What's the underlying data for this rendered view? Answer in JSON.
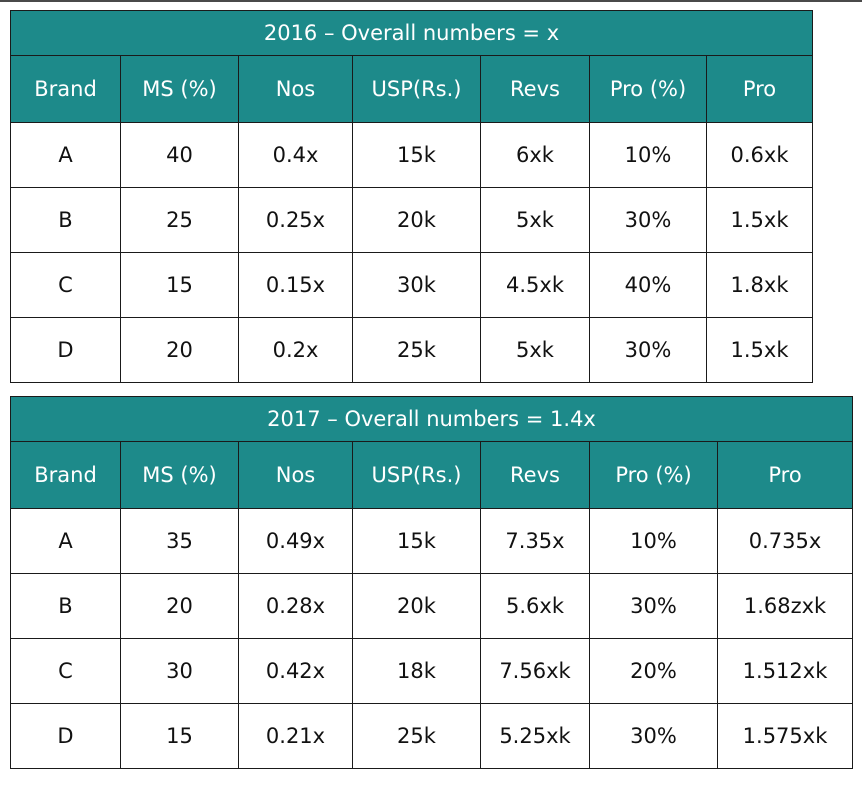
{
  "tables": [
    {
      "title": "2016 – Overall numbers = x",
      "headers": [
        "Brand",
        "MS (%)",
        "Nos",
        "USP(Rs.)",
        "Revs",
        "Pro (%)",
        "Pro"
      ],
      "rows": [
        [
          "A",
          "40",
          "0.4x",
          "15k",
          "6xk",
          "10%",
          "0.6xk"
        ],
        [
          "B",
          "25",
          "0.25x",
          "20k",
          "5xk",
          "30%",
          "1.5xk"
        ],
        [
          "C",
          "15",
          "0.15x",
          "30k",
          "4.5xk",
          "40%",
          "1.8xk"
        ],
        [
          "D",
          "20",
          "0.2x",
          "25k",
          "5xk",
          "30%",
          "1.5xk"
        ]
      ]
    },
    {
      "title": "2017 – Overall numbers = 1.4x",
      "headers": [
        "Brand",
        "MS (%)",
        "Nos",
        "USP(Rs.)",
        "Revs",
        "Pro (%)",
        "Pro"
      ],
      "rows": [
        [
          "A",
          "35",
          "0.49x",
          "15k",
          "7.35x",
          "10%",
          "0.735x"
        ],
        [
          "B",
          "20",
          "0.28x",
          "20k",
          "5.6xk",
          "30%",
          "1.68zxk"
        ],
        [
          "C",
          "30",
          "0.42x",
          "18k",
          "7.56xk",
          "20%",
          "1.512xk"
        ],
        [
          "D",
          "15",
          "0.21x",
          "25k",
          "5.25xk",
          "30%",
          "1.575xk"
        ]
      ]
    }
  ],
  "colors": {
    "header_background": "#1d8a8a",
    "header_text": "#ffffff",
    "border": "#1a1a1a"
  }
}
